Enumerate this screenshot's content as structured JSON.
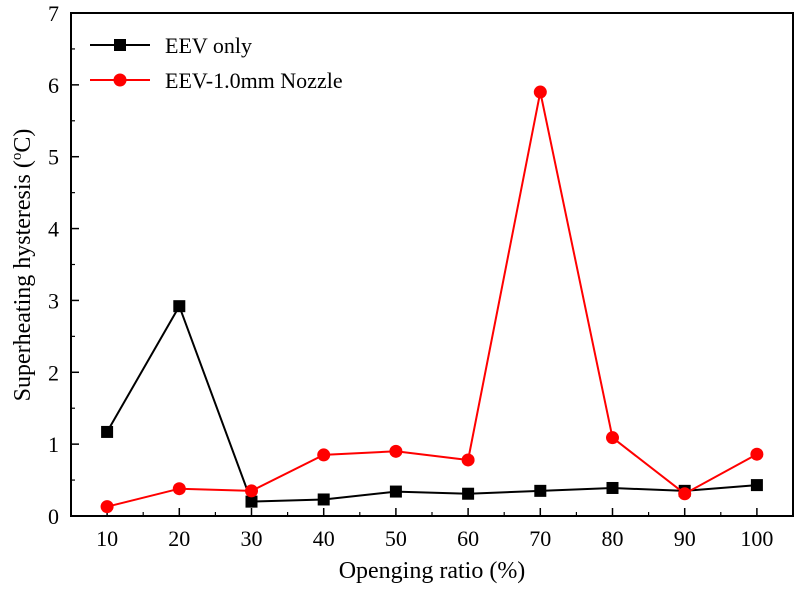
{
  "chart_data": {
    "type": "line",
    "xlabel": "Openging ratio (%)",
    "ylabel_main": "Superheating hysteresis (",
    "ylabel_sup": "o",
    "ylabel_unit": "C)",
    "x": [
      10,
      20,
      30,
      40,
      50,
      60,
      70,
      80,
      90,
      100
    ],
    "x_ticks": [
      "10",
      "20",
      "30",
      "40",
      "50",
      "60",
      "70",
      "80",
      "90",
      "100"
    ],
    "y_ticks": [
      "0",
      "1",
      "2",
      "3",
      "4",
      "5",
      "6",
      "7"
    ],
    "xlim": [
      5,
      105
    ],
    "ylim": [
      0,
      7
    ],
    "grid": false,
    "legend_position": "top-left",
    "series": [
      {
        "name": "EEV only",
        "color": "#000000",
        "marker": "square",
        "values": [
          1.17,
          2.92,
          0.2,
          0.23,
          0.34,
          0.31,
          0.35,
          0.39,
          0.35,
          0.43
        ]
      },
      {
        "name": "EEV-1.0mm Nozzle",
        "color": "#ff0000",
        "marker": "circle",
        "values": [
          0.13,
          0.38,
          0.35,
          0.85,
          0.9,
          0.78,
          5.9,
          1.09,
          0.31,
          0.86
        ]
      }
    ]
  }
}
